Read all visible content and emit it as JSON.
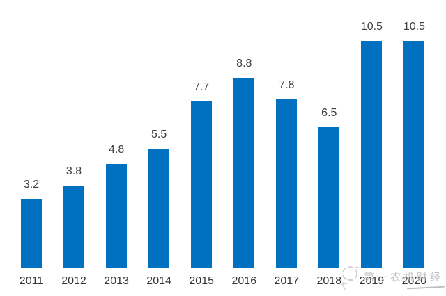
{
  "chart_data": {
    "type": "bar",
    "categories": [
      "2011",
      "2012",
      "2013",
      "2014",
      "2015",
      "2016",
      "2017",
      "2018",
      "2019",
      "2020"
    ],
    "values": [
      3.2,
      3.8,
      4.8,
      5.5,
      7.7,
      8.8,
      7.8,
      6.5,
      10.5,
      10.5
    ],
    "title": "",
    "xlabel": "",
    "ylabel": "",
    "ylim": [
      0,
      12
    ],
    "grid": false,
    "legend": false,
    "value_labels_shown": true,
    "axis_shown": "x-baseline-only"
  },
  "colors": {
    "bar": "#0070c0",
    "value_label": "#3d3d3d",
    "category_label": "#333333",
    "axis_line": "#d9d9d9",
    "background": "#ffffff",
    "watermark": "#bfbfbf"
  },
  "watermark": {
    "text": "第一农机财经",
    "logo": "sketch-doodle-logo"
  }
}
